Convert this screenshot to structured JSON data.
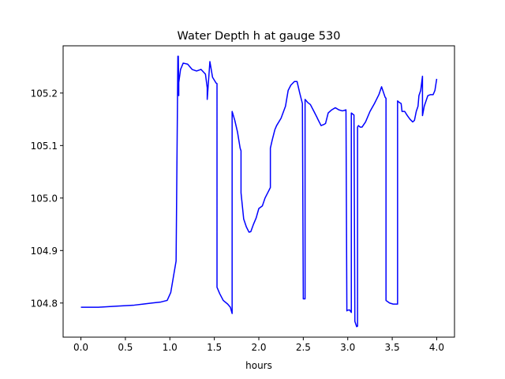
{
  "chart_data": {
    "type": "line",
    "title": "Water Depth h at gauge 530",
    "xlabel": "hours",
    "ylabel": "",
    "xlim": [
      -0.2,
      4.2
    ],
    "ylim": [
      104.735,
      105.29
    ],
    "xticks": [
      0.0,
      0.5,
      1.0,
      1.5,
      2.0,
      2.5,
      3.0,
      3.5,
      4.0
    ],
    "xtick_labels": [
      "0.0",
      "0.5",
      "1.0",
      "1.5",
      "2.0",
      "2.5",
      "3.0",
      "3.5",
      "4.0"
    ],
    "yticks": [
      104.8,
      104.9,
      105.0,
      105.1,
      105.2
    ],
    "ytick_labels": [
      "104.8",
      "104.9",
      "105.0",
      "105.1",
      "105.2"
    ],
    "grid": false,
    "legend": "none",
    "series": [
      {
        "color": "#0000ff",
        "x": [
          0.0,
          0.2,
          0.4,
          0.6,
          0.7,
          0.8,
          0.9,
          0.97,
          1.01,
          1.04,
          1.07,
          1.09,
          1.095,
          1.1,
          1.1,
          1.12,
          1.15,
          1.2,
          1.25,
          1.3,
          1.35,
          1.4,
          1.42,
          1.42,
          1.45,
          1.48,
          1.52,
          1.53,
          1.53,
          1.56,
          1.6,
          1.65,
          1.68,
          1.7,
          1.7,
          1.73,
          1.76,
          1.79,
          1.8,
          1.8,
          1.83,
          1.86,
          1.89,
          1.91,
          1.94,
          1.97,
          2.0,
          2.04,
          2.07,
          2.1,
          2.13,
          2.13,
          2.15,
          2.18,
          2.2,
          2.25,
          2.3,
          2.33,
          2.36,
          2.4,
          2.43,
          2.46,
          2.49,
          2.5,
          2.5,
          2.52,
          2.52,
          2.55,
          2.58,
          2.62,
          2.65,
          2.67,
          2.7,
          2.73,
          2.75,
          2.78,
          2.82,
          2.86,
          2.9,
          2.94,
          2.98,
          2.99,
          2.99,
          3.02,
          3.04,
          3.04,
          3.07,
          3.07,
          3.08,
          3.09,
          3.1,
          3.11,
          3.11,
          3.12,
          3.14,
          3.16,
          3.2,
          3.25,
          3.3,
          3.35,
          3.38,
          3.42,
          3.43,
          3.43,
          3.47,
          3.51,
          3.55,
          3.56,
          3.56,
          3.58,
          3.6,
          3.61,
          3.64,
          3.67,
          3.7,
          3.73,
          3.75,
          3.77,
          3.79,
          3.8,
          3.82,
          3.84,
          3.84,
          3.86,
          3.9,
          3.93,
          3.96,
          3.98,
          4.0
        ],
        "y": [
          104.792,
          104.792,
          104.794,
          104.796,
          104.798,
          104.8,
          104.802,
          104.805,
          104.82,
          104.85,
          104.88,
          105.27,
          105.27,
          105.195,
          105.22,
          105.245,
          105.257,
          105.255,
          105.245,
          105.242,
          105.245,
          105.236,
          105.21,
          105.188,
          105.26,
          105.23,
          105.219,
          105.218,
          104.83,
          104.818,
          104.805,
          104.798,
          104.792,
          104.78,
          105.165,
          105.148,
          105.126,
          105.095,
          105.09,
          105.01,
          104.96,
          104.945,
          104.935,
          104.936,
          104.95,
          104.962,
          104.98,
          104.985,
          105.0,
          105.01,
          105.02,
          105.095,
          105.11,
          105.13,
          105.138,
          105.152,
          105.175,
          105.205,
          105.215,
          105.222,
          105.222,
          105.2,
          105.18,
          104.812,
          104.808,
          104.808,
          105.188,
          105.182,
          105.178,
          105.165,
          105.155,
          105.148,
          105.138,
          105.14,
          105.142,
          105.162,
          105.168,
          105.172,
          105.168,
          105.166,
          105.168,
          104.785,
          104.786,
          104.787,
          104.782,
          105.162,
          105.158,
          105.15,
          104.765,
          104.76,
          104.755,
          104.756,
          105.135,
          105.138,
          105.135,
          105.135,
          105.145,
          105.165,
          105.18,
          105.197,
          105.212,
          105.192,
          105.19,
          104.805,
          104.8,
          104.798,
          104.798,
          104.798,
          105.185,
          105.182,
          105.18,
          105.165,
          105.165,
          105.157,
          105.15,
          105.145,
          105.148,
          105.165,
          105.175,
          105.195,
          105.205,
          105.232,
          105.157,
          105.175,
          105.195,
          105.197,
          105.197,
          105.205,
          105.227
        ]
      }
    ]
  }
}
